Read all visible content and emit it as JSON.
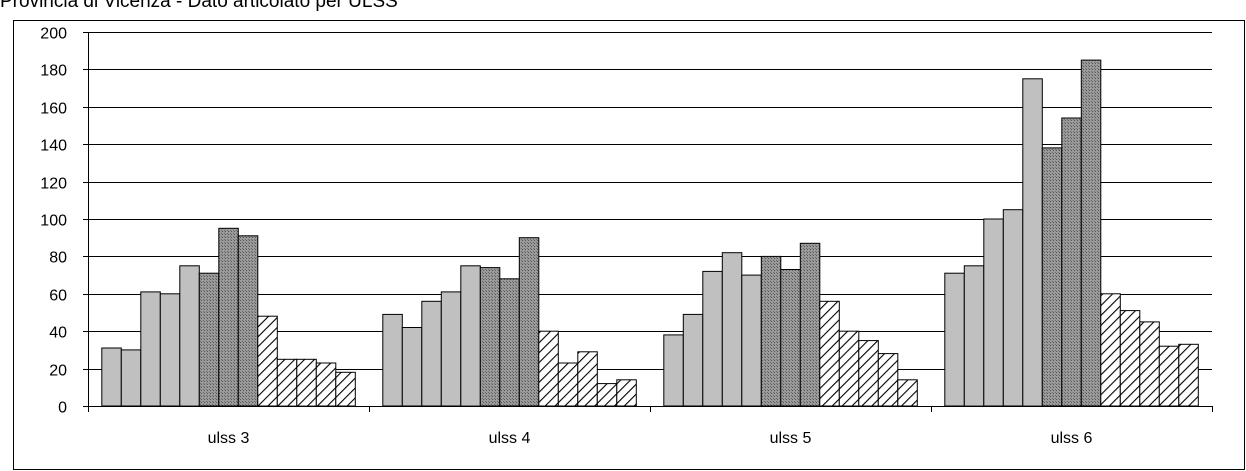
{
  "chart_data": {
    "type": "bar",
    "title": "Provincia di Vicenza - Dato articolato per ULSS",
    "categories": [
      "ulss 3",
      "ulss 4",
      "ulss 5",
      "ulss 6"
    ],
    "ylim": [
      0,
      200
    ],
    "yticks": [
      0,
      20,
      40,
      60,
      80,
      100,
      120,
      140,
      160,
      180,
      200
    ],
    "grid": true,
    "legend": "none",
    "bar_groups": [
      [
        31,
        30,
        61,
        60,
        75,
        71,
        95,
        91,
        48,
        25,
        25,
        23,
        18
      ],
      [
        49,
        42,
        56,
        61,
        75,
        74,
        68,
        90,
        40,
        23,
        29,
        12,
        14
      ],
      [
        38,
        49,
        72,
        82,
        70,
        80,
        73,
        87,
        56,
        40,
        35,
        28,
        14
      ],
      [
        71,
        75,
        100,
        105,
        175,
        138,
        154,
        185,
        60,
        51,
        45,
        32,
        33
      ]
    ],
    "bar_fills": [
      "light-gray",
      "light-gray",
      "light-gray",
      "light-gray",
      "light-gray",
      "dark-crosshatch",
      "dark-crosshatch",
      "dark-crosshatch",
      "diagonal-hatch",
      "diagonal-hatch",
      "diagonal-hatch",
      "diagonal-hatch",
      "diagonal-hatch"
    ],
    "colors": {
      "light": "#c0c0c0",
      "dark": "#888888",
      "stroke": "#000000",
      "background": "#ffffff"
    }
  }
}
